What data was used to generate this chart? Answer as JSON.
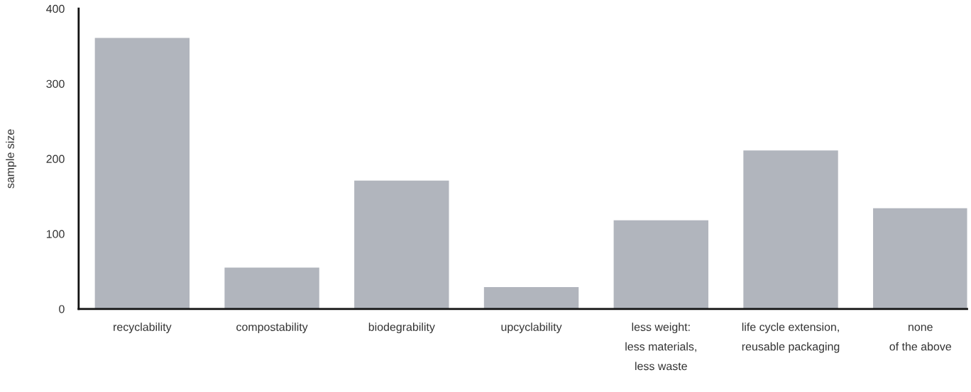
{
  "chart_data": {
    "type": "bar",
    "ylabel": "sample size",
    "categories": [
      "recyclability",
      "compostability",
      "biodegrability",
      "upcyclability",
      "less weight:\nless materials,\nless waste",
      "life cycle extension,\nreusable packaging",
      "none\nof the above"
    ],
    "values": [
      361,
      55,
      171,
      29,
      118,
      211,
      134
    ],
    "color": "#b1b5bd",
    "ylim": [
      0,
      400
    ],
    "yticks": [
      0,
      100,
      200,
      300,
      400
    ],
    "grid": false,
    "legend": false
  }
}
